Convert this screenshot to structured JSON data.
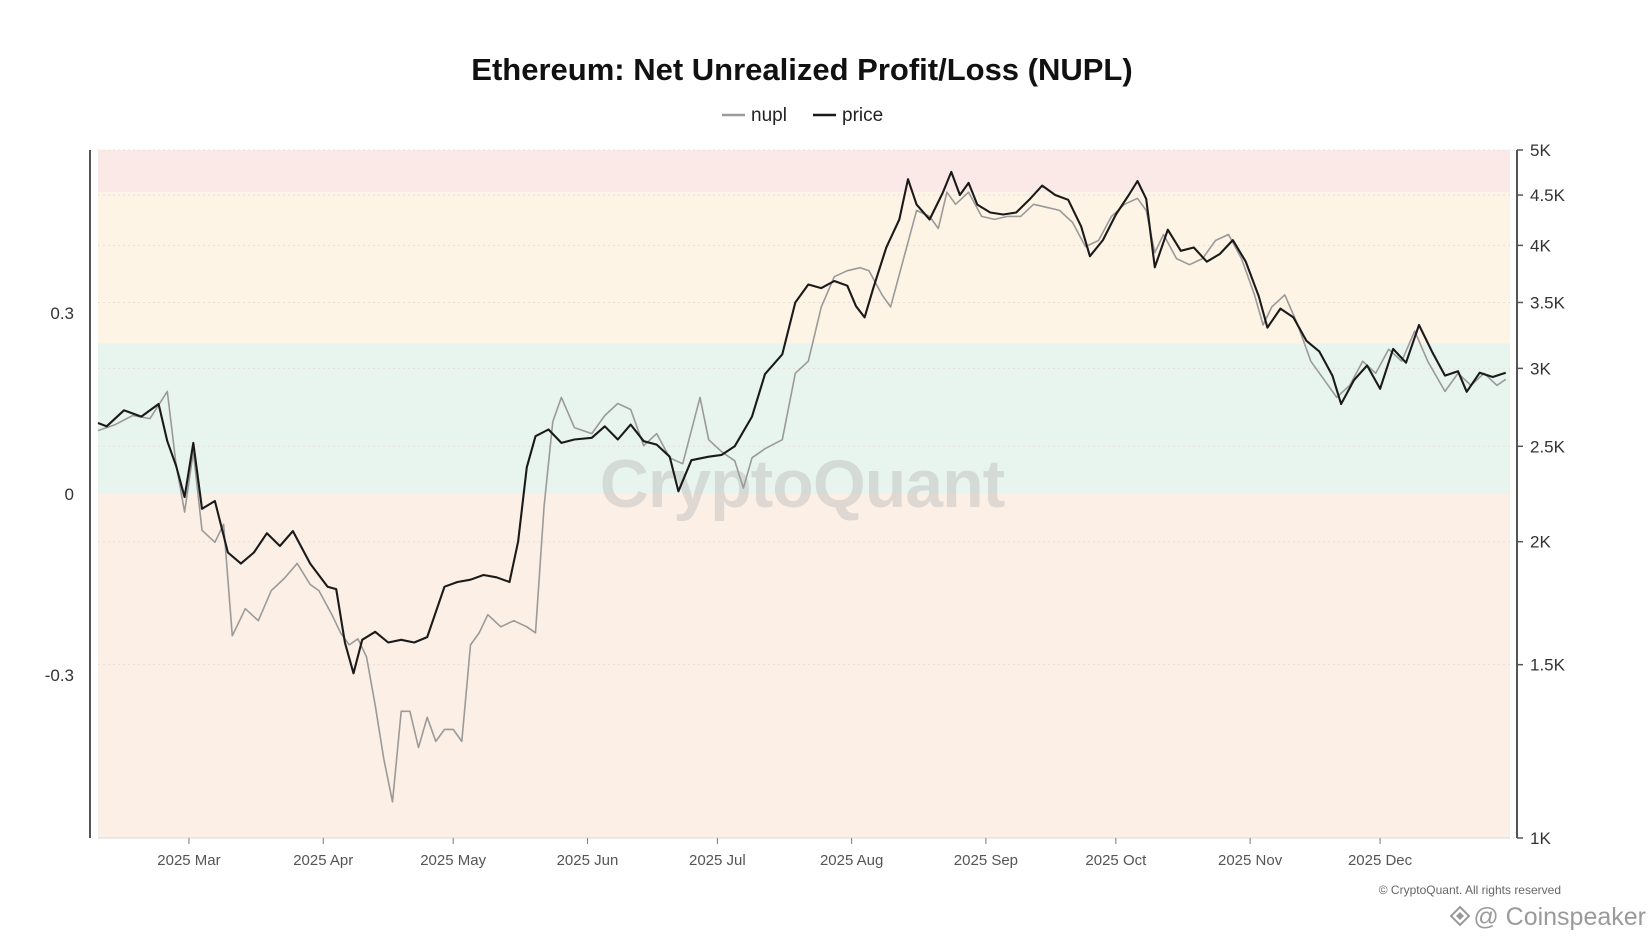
{
  "chart_data": {
    "type": "line",
    "title": "Ethereum: Net Unrealized Profit/Loss (NUPL)",
    "watermark": "CryptoQuant",
    "copyright": "© CryptoQuant. All rights reserved",
    "source_mark": "@ Coinspeaker",
    "x_range": [
      "2025-02-08",
      "2025-12-31"
    ],
    "x_ticks": [
      {
        "label": "2025 Mar",
        "date": "2025-03-01"
      },
      {
        "label": "2025 Apr",
        "date": "2025-04-01"
      },
      {
        "label": "2025 May",
        "date": "2025-05-01"
      },
      {
        "label": "2025 Jun",
        "date": "2025-06-01"
      },
      {
        "label": "2025 Jul",
        "date": "2025-07-01"
      },
      {
        "label": "2025 Aug",
        "date": "2025-08-01"
      },
      {
        "label": "2025 Sep",
        "date": "2025-09-01"
      },
      {
        "label": "2025 Oct",
        "date": "2025-10-01"
      },
      {
        "label": "2025 Nov",
        "date": "2025-11-01"
      },
      {
        "label": "2025 Dec",
        "date": "2025-12-01"
      }
    ],
    "y_left": {
      "label": "",
      "range": [
        -0.57,
        0.57
      ],
      "ticks": [
        0.3,
        0,
        -0.3
      ],
      "tick_labels": [
        "0.3",
        "0",
        "-0.3"
      ]
    },
    "y_right": {
      "label": "",
      "scale": "log",
      "range": [
        1000,
        5000
      ],
      "ticks": [
        5000,
        4500,
        4000,
        3500,
        3000,
        2500,
        2000,
        1500,
        1000
      ],
      "tick_labels": [
        "5K",
        "4.5K",
        "4K",
        "3.5K",
        "3K",
        "2.5K",
        "2K",
        "1.5K",
        "1K"
      ]
    },
    "zones": [
      {
        "from": 0.5,
        "to": 0.57,
        "color": "#fbe9e8"
      },
      {
        "from": 0.25,
        "to": 0.5,
        "color": "#fdf4e6"
      },
      {
        "from": 0,
        "to": 0.25,
        "color": "#e8f5ee"
      },
      {
        "from": -0.57,
        "to": 0,
        "color": "#fcefe5"
      }
    ],
    "series": [
      {
        "name": "nupl",
        "axis": "left",
        "color": "#9a9a9a",
        "points": [
          [
            "2025-02-08",
            0.105
          ],
          [
            "2025-02-12",
            0.115
          ],
          [
            "2025-02-16",
            0.13
          ],
          [
            "2025-02-20",
            0.125
          ],
          [
            "2025-02-24",
            0.17
          ],
          [
            "2025-02-26",
            0.05
          ],
          [
            "2025-02-28",
            -0.03
          ],
          [
            "2025-03-02",
            0.07
          ],
          [
            "2025-03-04",
            -0.06
          ],
          [
            "2025-03-07",
            -0.08
          ],
          [
            "2025-03-09",
            -0.05
          ],
          [
            "2025-03-11",
            -0.235
          ],
          [
            "2025-03-14",
            -0.19
          ],
          [
            "2025-03-17",
            -0.21
          ],
          [
            "2025-03-20",
            -0.16
          ],
          [
            "2025-03-23",
            -0.14
          ],
          [
            "2025-03-26",
            -0.115
          ],
          [
            "2025-03-29",
            -0.15
          ],
          [
            "2025-03-31",
            -0.16
          ],
          [
            "2025-04-03",
            -0.2
          ],
          [
            "2025-04-05",
            -0.23
          ],
          [
            "2025-04-07",
            -0.25
          ],
          [
            "2025-04-09",
            -0.24
          ],
          [
            "2025-04-11",
            -0.27
          ],
          [
            "2025-04-13",
            -0.35
          ],
          [
            "2025-04-15",
            -0.44
          ],
          [
            "2025-04-17",
            -0.51
          ],
          [
            "2025-04-19",
            -0.36
          ],
          [
            "2025-04-21",
            -0.36
          ],
          [
            "2025-04-23",
            -0.42
          ],
          [
            "2025-04-25",
            -0.37
          ],
          [
            "2025-04-27",
            -0.41
          ],
          [
            "2025-04-29",
            -0.39
          ],
          [
            "2025-05-01",
            -0.39
          ],
          [
            "2025-05-03",
            -0.41
          ],
          [
            "2025-05-05",
            -0.25
          ],
          [
            "2025-05-07",
            -0.23
          ],
          [
            "2025-05-09",
            -0.2
          ],
          [
            "2025-05-12",
            -0.22
          ],
          [
            "2025-05-15",
            -0.21
          ],
          [
            "2025-05-18",
            -0.22
          ],
          [
            "2025-05-20",
            -0.23
          ],
          [
            "2025-05-22",
            -0.02
          ],
          [
            "2025-05-24",
            0.12
          ],
          [
            "2025-05-26",
            0.16
          ],
          [
            "2025-05-29",
            0.11
          ],
          [
            "2025-06-02",
            0.1
          ],
          [
            "2025-06-05",
            0.13
          ],
          [
            "2025-06-08",
            0.15
          ],
          [
            "2025-06-11",
            0.14
          ],
          [
            "2025-06-14",
            0.08
          ],
          [
            "2025-06-17",
            0.1
          ],
          [
            "2025-06-20",
            0.06
          ],
          [
            "2025-06-23",
            0.05
          ],
          [
            "2025-06-27",
            0.16
          ],
          [
            "2025-06-29",
            0.09
          ],
          [
            "2025-07-02",
            0.07
          ],
          [
            "2025-07-05",
            0.055
          ],
          [
            "2025-07-07",
            0.01
          ],
          [
            "2025-07-09",
            0.06
          ],
          [
            "2025-07-12",
            0.075
          ],
          [
            "2025-07-16",
            0.09
          ],
          [
            "2025-07-19",
            0.2
          ],
          [
            "2025-07-22",
            0.22
          ],
          [
            "2025-07-25",
            0.31
          ],
          [
            "2025-07-28",
            0.36
          ],
          [
            "2025-07-31",
            0.37
          ],
          [
            "2025-08-03",
            0.375
          ],
          [
            "2025-08-05",
            0.37
          ],
          [
            "2025-08-08",
            0.33
          ],
          [
            "2025-08-10",
            0.31
          ],
          [
            "2025-08-13",
            0.39
          ],
          [
            "2025-08-16",
            0.47
          ],
          [
            "2025-08-19",
            0.46
          ],
          [
            "2025-08-21",
            0.44
          ],
          [
            "2025-08-23",
            0.5
          ],
          [
            "2025-08-25",
            0.48
          ],
          [
            "2025-08-28",
            0.5
          ],
          [
            "2025-08-31",
            0.46
          ],
          [
            "2025-09-03",
            0.455
          ],
          [
            "2025-09-06",
            0.46
          ],
          [
            "2025-09-09",
            0.46
          ],
          [
            "2025-09-12",
            0.48
          ],
          [
            "2025-09-15",
            0.475
          ],
          [
            "2025-09-18",
            0.47
          ],
          [
            "2025-09-21",
            0.45
          ],
          [
            "2025-09-24",
            0.41
          ],
          [
            "2025-09-27",
            0.42
          ],
          [
            "2025-09-30",
            0.46
          ],
          [
            "2025-10-03",
            0.48
          ],
          [
            "2025-10-06",
            0.49
          ],
          [
            "2025-10-08",
            0.47
          ],
          [
            "2025-10-10",
            0.4
          ],
          [
            "2025-10-12",
            0.43
          ],
          [
            "2025-10-15",
            0.39
          ],
          [
            "2025-10-18",
            0.38
          ],
          [
            "2025-10-21",
            0.39
          ],
          [
            "2025-10-24",
            0.42
          ],
          [
            "2025-10-27",
            0.43
          ],
          [
            "2025-10-30",
            0.39
          ],
          [
            "2025-11-02",
            0.33
          ],
          [
            "2025-11-04",
            0.28
          ],
          [
            "2025-11-06",
            0.31
          ],
          [
            "2025-11-09",
            0.33
          ],
          [
            "2025-11-12",
            0.28
          ],
          [
            "2025-11-15",
            0.22
          ],
          [
            "2025-11-18",
            0.19
          ],
          [
            "2025-11-21",
            0.16
          ],
          [
            "2025-11-24",
            0.18
          ],
          [
            "2025-11-27",
            0.22
          ],
          [
            "2025-11-30",
            0.2
          ],
          [
            "2025-12-03",
            0.24
          ],
          [
            "2025-12-06",
            0.22
          ],
          [
            "2025-12-09",
            0.27
          ],
          [
            "2025-12-12",
            0.22
          ],
          [
            "2025-12-16",
            0.17
          ],
          [
            "2025-12-19",
            0.2
          ],
          [
            "2025-12-22",
            0.18
          ],
          [
            "2025-12-25",
            0.2
          ],
          [
            "2025-12-28",
            0.18
          ],
          [
            "2025-12-30",
            0.19
          ]
        ]
      },
      {
        "name": "price",
        "axis": "right",
        "color": "#1a1a1a",
        "points": [
          [
            "2025-02-08",
            2640
          ],
          [
            "2025-02-10",
            2620
          ],
          [
            "2025-02-14",
            2720
          ],
          [
            "2025-02-18",
            2680
          ],
          [
            "2025-02-22",
            2760
          ],
          [
            "2025-02-24",
            2530
          ],
          [
            "2025-02-26",
            2390
          ],
          [
            "2025-02-28",
            2220
          ],
          [
            "2025-03-02",
            2520
          ],
          [
            "2025-03-04",
            2160
          ],
          [
            "2025-03-07",
            2200
          ],
          [
            "2025-03-10",
            1950
          ],
          [
            "2025-03-13",
            1900
          ],
          [
            "2025-03-16",
            1950
          ],
          [
            "2025-03-19",
            2040
          ],
          [
            "2025-03-22",
            1980
          ],
          [
            "2025-03-25",
            2050
          ],
          [
            "2025-03-29",
            1900
          ],
          [
            "2025-04-02",
            1800
          ],
          [
            "2025-04-04",
            1790
          ],
          [
            "2025-04-06",
            1580
          ],
          [
            "2025-04-08",
            1470
          ],
          [
            "2025-04-10",
            1590
          ],
          [
            "2025-04-13",
            1620
          ],
          [
            "2025-04-16",
            1580
          ],
          [
            "2025-04-19",
            1590
          ],
          [
            "2025-04-22",
            1580
          ],
          [
            "2025-04-25",
            1600
          ],
          [
            "2025-04-29",
            1800
          ],
          [
            "2025-05-02",
            1820
          ],
          [
            "2025-05-05",
            1830
          ],
          [
            "2025-05-08",
            1850
          ],
          [
            "2025-05-11",
            1840
          ],
          [
            "2025-05-14",
            1820
          ],
          [
            "2025-05-16",
            2000
          ],
          [
            "2025-05-18",
            2380
          ],
          [
            "2025-05-20",
            2560
          ],
          [
            "2025-05-23",
            2600
          ],
          [
            "2025-05-26",
            2520
          ],
          [
            "2025-05-29",
            2540
          ],
          [
            "2025-06-02",
            2550
          ],
          [
            "2025-06-05",
            2620
          ],
          [
            "2025-06-08",
            2540
          ],
          [
            "2025-06-11",
            2630
          ],
          [
            "2025-06-14",
            2530
          ],
          [
            "2025-06-17",
            2510
          ],
          [
            "2025-06-20",
            2440
          ],
          [
            "2025-06-22",
            2250
          ],
          [
            "2025-06-25",
            2420
          ],
          [
            "2025-06-29",
            2440
          ],
          [
            "2025-07-02",
            2450
          ],
          [
            "2025-07-05",
            2500
          ],
          [
            "2025-07-09",
            2680
          ],
          [
            "2025-07-12",
            2960
          ],
          [
            "2025-07-16",
            3100
          ],
          [
            "2025-07-19",
            3500
          ],
          [
            "2025-07-22",
            3650
          ],
          [
            "2025-07-25",
            3620
          ],
          [
            "2025-07-28",
            3680
          ],
          [
            "2025-07-31",
            3640
          ],
          [
            "2025-08-02",
            3470
          ],
          [
            "2025-08-04",
            3380
          ],
          [
            "2025-08-06",
            3620
          ],
          [
            "2025-08-09",
            3980
          ],
          [
            "2025-08-12",
            4250
          ],
          [
            "2025-08-14",
            4670
          ],
          [
            "2025-08-16",
            4400
          ],
          [
            "2025-08-19",
            4250
          ],
          [
            "2025-08-22",
            4520
          ],
          [
            "2025-08-24",
            4750
          ],
          [
            "2025-08-26",
            4500
          ],
          [
            "2025-08-28",
            4630
          ],
          [
            "2025-08-30",
            4400
          ],
          [
            "2025-09-02",
            4320
          ],
          [
            "2025-09-05",
            4300
          ],
          [
            "2025-09-08",
            4320
          ],
          [
            "2025-09-11",
            4450
          ],
          [
            "2025-09-14",
            4600
          ],
          [
            "2025-09-17",
            4500
          ],
          [
            "2025-09-20",
            4450
          ],
          [
            "2025-09-23",
            4180
          ],
          [
            "2025-09-25",
            3900
          ],
          [
            "2025-09-28",
            4050
          ],
          [
            "2025-10-01",
            4300
          ],
          [
            "2025-10-04",
            4500
          ],
          [
            "2025-10-06",
            4650
          ],
          [
            "2025-10-08",
            4460
          ],
          [
            "2025-10-10",
            3800
          ],
          [
            "2025-10-13",
            4150
          ],
          [
            "2025-10-16",
            3950
          ],
          [
            "2025-10-19",
            3980
          ],
          [
            "2025-10-22",
            3850
          ],
          [
            "2025-10-25",
            3920
          ],
          [
            "2025-10-28",
            4050
          ],
          [
            "2025-10-31",
            3850
          ],
          [
            "2025-11-03",
            3550
          ],
          [
            "2025-11-05",
            3300
          ],
          [
            "2025-11-08",
            3450
          ],
          [
            "2025-11-11",
            3380
          ],
          [
            "2025-11-14",
            3200
          ],
          [
            "2025-11-17",
            3120
          ],
          [
            "2025-11-20",
            2950
          ],
          [
            "2025-11-22",
            2760
          ],
          [
            "2025-11-25",
            2920
          ],
          [
            "2025-11-28",
            3020
          ],
          [
            "2025-12-01",
            2860
          ],
          [
            "2025-12-04",
            3140
          ],
          [
            "2025-12-07",
            3040
          ],
          [
            "2025-12-10",
            3320
          ],
          [
            "2025-12-13",
            3120
          ],
          [
            "2025-12-16",
            2950
          ],
          [
            "2025-12-19",
            2980
          ],
          [
            "2025-12-21",
            2840
          ],
          [
            "2025-12-24",
            2970
          ],
          [
            "2025-12-27",
            2940
          ],
          [
            "2025-12-30",
            2970
          ]
        ]
      }
    ],
    "legend": {
      "position": "top-center"
    }
  }
}
